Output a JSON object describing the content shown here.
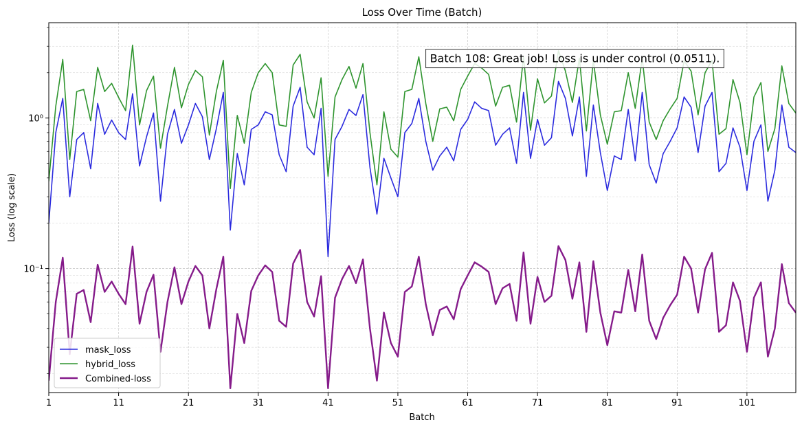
{
  "chart_data": {
    "type": "line",
    "title": "Loss Over Time (Batch)",
    "xlabel": "Batch",
    "ylabel": "Loss (log scale)",
    "yscale": "log",
    "xlim": [
      1,
      108
    ],
    "ylim": [
      0.015,
      4.3
    ],
    "xticks": [
      1,
      11,
      21,
      31,
      41,
      51,
      61,
      71,
      81,
      91,
      101
    ],
    "yticks": [
      {
        "value": 0.1,
        "label": "10⁻¹"
      },
      {
        "value": 1,
        "label": "10⁰"
      }
    ],
    "grid": true,
    "legend_position": "lower-left",
    "annotation": {
      "text": "Batch 108: Great job! Loss is under control (0.0511).",
      "x": 55,
      "y": 2.5
    },
    "x_start": 1,
    "series": [
      {
        "name": "mask_loss",
        "color": "#2b2bde",
        "width": 1.6,
        "values": [
          0.2,
          0.8,
          1.35,
          0.3,
          0.72,
          0.8,
          0.46,
          1.25,
          0.78,
          0.97,
          0.8,
          0.72,
          1.45,
          0.48,
          0.75,
          1.08,
          0.28,
          0.78,
          1.14,
          0.68,
          0.9,
          1.25,
          1.02,
          0.53,
          0.85,
          1.48,
          0.18,
          0.58,
          0.36,
          0.84,
          0.9,
          1.1,
          1.05,
          0.57,
          0.44,
          1.2,
          1.6,
          0.64,
          0.57,
          1.16,
          0.12,
          0.72,
          0.88,
          1.14,
          1.04,
          1.43,
          0.47,
          0.23,
          0.54,
          0.4,
          0.3,
          0.8,
          0.92,
          1.35,
          0.7,
          0.45,
          0.56,
          0.64,
          0.52,
          0.84,
          0.98,
          1.28,
          1.16,
          1.12,
          0.66,
          0.78,
          0.86,
          0.5,
          1.48,
          0.54,
          0.98,
          0.66,
          0.74,
          1.75,
          1.35,
          0.76,
          1.38,
          0.41,
          1.22,
          0.59,
          0.33,
          0.56,
          0.53,
          1.14,
          0.52,
          1.48,
          0.49,
          0.37,
          0.58,
          0.7,
          0.86,
          1.38,
          1.18,
          0.59,
          1.2,
          1.48,
          0.44,
          0.5,
          0.86,
          0.64,
          0.33,
          0.7,
          0.9,
          0.28,
          0.45,
          1.22,
          0.64,
          0.59
        ]
      },
      {
        "name": "hybrid_loss",
        "color": "#2e942e",
        "width": 1.6,
        "values": [
          0.38,
          1.2,
          2.45,
          0.53,
          1.5,
          1.55,
          0.96,
          2.17,
          1.5,
          1.7,
          1.37,
          1.12,
          3.05,
          0.9,
          1.52,
          1.9,
          0.63,
          1.2,
          2.17,
          1.17,
          1.67,
          2.07,
          1.88,
          0.77,
          1.5,
          2.42,
          0.34,
          1.04,
          0.68,
          1.48,
          2.0,
          2.3,
          2.0,
          0.9,
          0.88,
          2.25,
          2.65,
          1.28,
          1.0,
          1.85,
          0.41,
          1.38,
          1.8,
          2.2,
          1.58,
          2.3,
          0.8,
          0.36,
          1.1,
          0.62,
          0.55,
          1.5,
          1.55,
          2.55,
          1.25,
          0.7,
          1.15,
          1.18,
          0.96,
          1.55,
          1.9,
          2.3,
          2.15,
          1.95,
          1.2,
          1.6,
          1.65,
          0.94,
          2.55,
          0.83,
          1.82,
          1.26,
          1.4,
          2.8,
          2.05,
          1.27,
          2.5,
          0.82,
          2.42,
          1.05,
          0.67,
          1.1,
          1.12,
          2.0,
          1.16,
          2.5,
          0.94,
          0.72,
          0.96,
          1.15,
          1.35,
          2.4,
          2.05,
          1.05,
          2.0,
          2.42,
          0.78,
          0.85,
          1.8,
          1.27,
          0.57,
          1.38,
          1.72,
          0.6,
          0.85,
          2.22,
          1.25,
          1.08
        ]
      },
      {
        "name": "Combined-loss",
        "color": "#851b8a",
        "width": 2.4,
        "values": [
          0.018,
          0.06,
          0.118,
          0.027,
          0.068,
          0.072,
          0.044,
          0.106,
          0.07,
          0.082,
          0.068,
          0.058,
          0.14,
          0.043,
          0.07,
          0.091,
          0.028,
          0.06,
          0.102,
          0.058,
          0.082,
          0.104,
          0.09,
          0.04,
          0.073,
          0.12,
          0.016,
          0.05,
          0.032,
          0.071,
          0.09,
          0.105,
          0.095,
          0.045,
          0.041,
          0.108,
          0.133,
          0.06,
          0.048,
          0.089,
          0.016,
          0.064,
          0.085,
          0.104,
          0.08,
          0.115,
          0.04,
          0.018,
          0.051,
          0.032,
          0.026,
          0.07,
          0.076,
          0.12,
          0.058,
          0.036,
          0.053,
          0.056,
          0.046,
          0.073,
          0.09,
          0.11,
          0.103,
          0.095,
          0.058,
          0.074,
          0.079,
          0.045,
          0.128,
          0.043,
          0.088,
          0.06,
          0.066,
          0.141,
          0.114,
          0.063,
          0.11,
          0.038,
          0.112,
          0.051,
          0.031,
          0.052,
          0.051,
          0.098,
          0.052,
          0.124,
          0.045,
          0.034,
          0.047,
          0.057,
          0.067,
          0.12,
          0.1,
          0.051,
          0.099,
          0.127,
          0.038,
          0.042,
          0.081,
          0.061,
          0.028,
          0.064,
          0.081,
          0.026,
          0.04,
          0.107,
          0.059,
          0.051
        ]
      }
    ]
  }
}
